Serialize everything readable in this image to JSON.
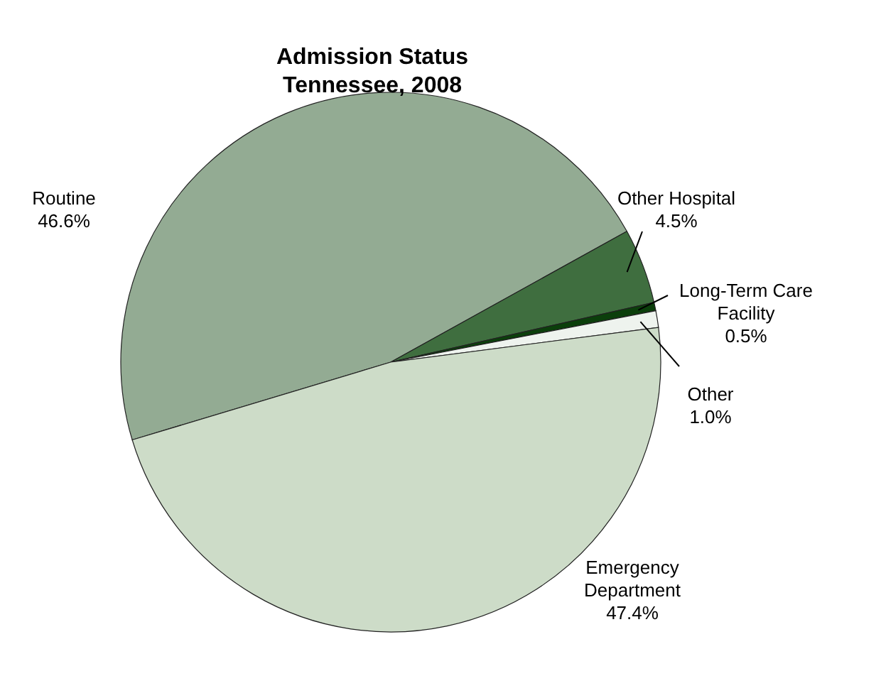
{
  "chart_data": {
    "type": "pie",
    "title": "Admission Status\nTennessee, 2008",
    "categories": [
      "Routine",
      "Other Hospital",
      "Long-Term Care Facility",
      "Other",
      "Emergency Department"
    ],
    "values": [
      46.6,
      4.5,
      0.5,
      1.0,
      47.4
    ],
    "value_labels": [
      "46.6%",
      "4.5%",
      "0.5%",
      "1.0%",
      "47.4%"
    ],
    "colors": [
      "#93ab93",
      "#3f6e3f",
      "#0b3f0b",
      "#eef3ee",
      "#cddcc8"
    ]
  }
}
